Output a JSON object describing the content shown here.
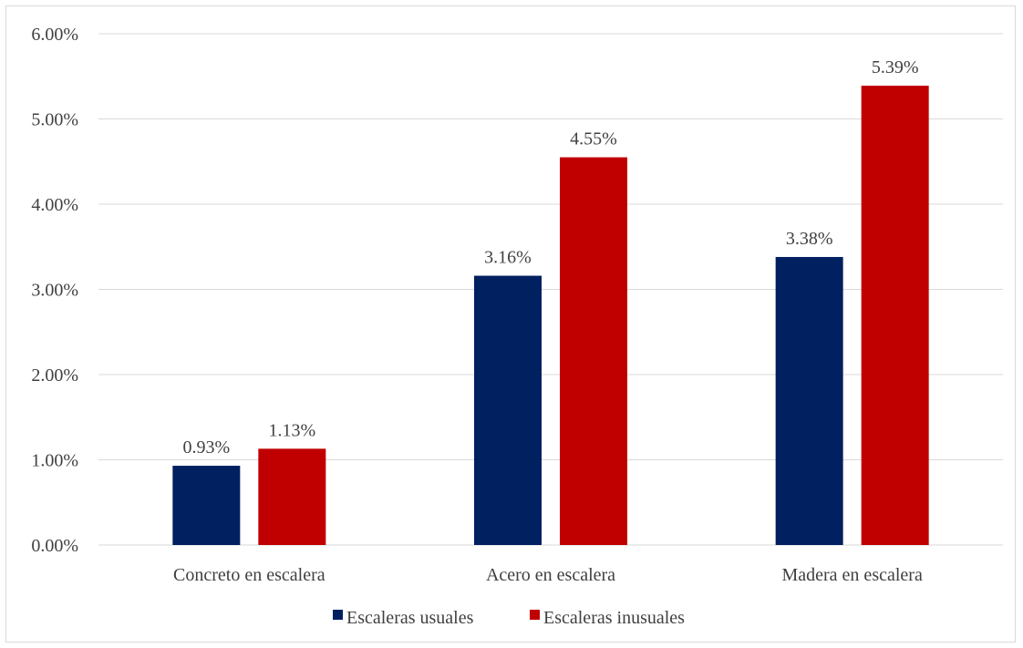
{
  "chart_data": {
    "type": "bar",
    "categories": [
      "Concreto en escalera",
      "Acero en escalera",
      "Madera en escalera"
    ],
    "series": [
      {
        "name": "Escaleras usuales",
        "values": [
          0.93,
          3.16,
          3.38
        ],
        "labels": [
          "0.93%",
          "3.16%",
          "3.38%"
        ],
        "color": "#002060"
      },
      {
        "name": "Escaleras inusuales",
        "values": [
          1.13,
          4.55,
          5.39
        ],
        "labels": [
          "1.13%",
          "4.55%",
          "5.39%"
        ],
        "color": "#C00000"
      }
    ],
    "yticks": [
      "0.00%",
      "1.00%",
      "2.00%",
      "3.00%",
      "4.00%",
      "5.00%",
      "6.00%"
    ],
    "ylim": [
      0,
      6
    ],
    "grid": true,
    "legend_position": "bottom",
    "gridline_color": "#d9d9d9"
  }
}
